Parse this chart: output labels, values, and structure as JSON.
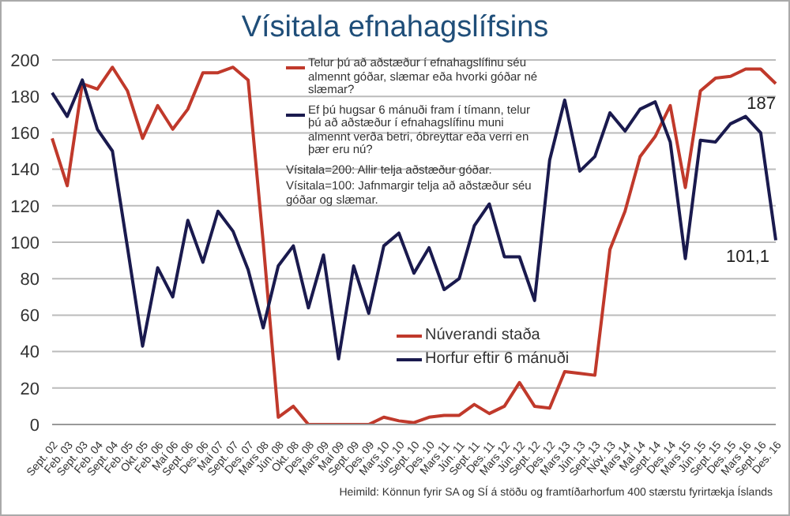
{
  "chart_data": {
    "type": "line",
    "title": "Vísitala efnahagslífsins",
    "categories": [
      "Sept. 02",
      "Feb. 03",
      "Sept. 03",
      "Feb. 04",
      "Sept. 04",
      "Feb. 05",
      "Okt. 05",
      "Feb. 06",
      "Maí 06",
      "Sept. 06",
      "Des. 06",
      "Maí 07",
      "Sept. 07",
      "Des. 07",
      "Mars 08",
      "Jún. 08",
      "Okt. 08",
      "Des. 08",
      "Mars 09",
      "Maí 09",
      "Sept. 09",
      "Des. 09",
      "Mars 10",
      "Jún. 10",
      "Sept. 10",
      "Des. 10",
      "Mars 11",
      "Jún. 11",
      "Sept. 11",
      "Des. 11",
      "Mars 12",
      "Jún. 12",
      "Sept. 12",
      "Des. 12",
      "Mars 13",
      "Jún. 13",
      "Sept. 13",
      "Nóv. 13",
      "Mars 14",
      "Maí 14",
      "Sept. 14",
      "Des. 14",
      "Mars 15",
      "Jún. 15",
      "Sept. 15",
      "Des. 15",
      "Mars 16",
      "Sept. 16",
      "Des. 16"
    ],
    "series": [
      {
        "name": "Núverandi staða",
        "color": "#c0392b",
        "values": [
          157,
          131,
          187,
          184,
          196,
          183,
          157,
          175,
          162,
          173,
          193,
          193,
          196,
          189,
          100,
          4,
          10,
          0,
          0,
          0,
          0,
          0,
          4,
          2,
          1,
          4,
          5,
          5,
          11,
          6,
          10,
          23,
          10,
          9,
          29,
          28,
          27,
          96,
          117,
          147,
          158,
          175,
          130,
          183,
          190,
          191,
          195,
          195,
          187
        ],
        "value_labels": [
          null,
          null,
          null,
          null,
          null,
          null,
          null,
          null,
          null,
          null,
          null,
          null,
          null,
          null,
          null,
          null,
          null,
          null,
          null,
          null,
          null,
          null,
          null,
          null,
          null,
          null,
          null,
          null,
          null,
          null,
          null,
          null,
          null,
          null,
          null,
          null,
          null,
          null,
          null,
          null,
          null,
          null,
          null,
          null,
          null,
          null,
          null,
          null,
          "187"
        ]
      },
      {
        "name": "Horfur eftir 6 mánuði",
        "color": "#1a1a4e",
        "values": [
          182,
          169,
          189,
          162,
          150,
          97,
          43,
          86,
          70,
          112,
          89,
          117,
          106,
          85,
          53,
          87,
          98,
          64,
          93,
          36,
          87,
          61,
          98,
          105,
          83,
          97,
          74,
          80,
          109,
          121,
          92,
          92,
          68,
          145,
          178,
          139,
          147,
          171,
          161,
          173,
          177,
          155,
          91,
          156,
          155,
          165,
          169,
          160,
          101.1
        ],
        "value_labels": [
          null,
          null,
          null,
          null,
          null,
          null,
          null,
          null,
          null,
          null,
          null,
          null,
          null,
          null,
          null,
          null,
          null,
          null,
          null,
          null,
          null,
          null,
          null,
          null,
          null,
          null,
          null,
          null,
          null,
          null,
          null,
          null,
          null,
          null,
          null,
          null,
          null,
          null,
          null,
          null,
          null,
          null,
          null,
          null,
          null,
          null,
          null,
          null,
          "101,1"
        ]
      }
    ],
    "ylim": [
      0,
      200
    ],
    "yticks": [
      0,
      20,
      40,
      60,
      80,
      100,
      120,
      140,
      160,
      180,
      200
    ],
    "grid": "y",
    "legend": "center",
    "marker": "none",
    "line_style": "solid",
    "annotations": [
      "Telur þú að aðstæður í efnahagslífinu séu almennt góðar, slæmar eða hvorki góðar né slæmar?",
      "Ef þú hugsar 6 mánuði fram í tímann, telur þú að aðstæður í efnahagslífinu muni almennt verða betri, óbreyttar eða verri en þær eru nú?",
      "Vísitala=200:  Allir telja aðstæður góðar.",
      "Vísitala=100:  Jafnmargir telja að aðstæður séu góðar og slæmar.",
      "Heimild: Könnun fyrir SA og SÍ á stöðu og framtíðarhorfum 400 stærstu fyrirtækja Íslands"
    ]
  }
}
